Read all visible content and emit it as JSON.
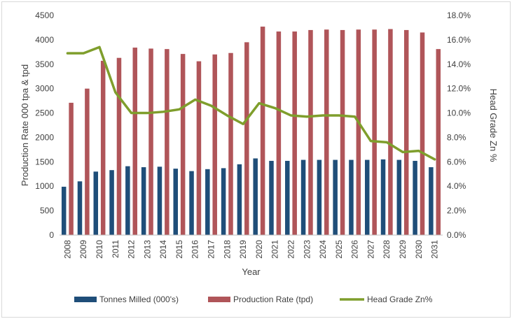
{
  "chart_data": {
    "type": "bar",
    "title": "",
    "xlabel": "Year",
    "ylabel": "Production Rate 000 tpa & tpd",
    "y2label": "Head Grade Zn %",
    "ylim": [
      0,
      4500
    ],
    "y2lim": [
      0,
      0.18
    ],
    "yticks": [
      "0",
      "500",
      "1000",
      "1500",
      "2000",
      "2500",
      "3000",
      "3500",
      "4000",
      "4500"
    ],
    "y2ticks": [
      "0.0%",
      "2.0%",
      "4.0%",
      "6.0%",
      "8.0%",
      "10.0%",
      "12.0%",
      "14.0%",
      "16.0%",
      "18.0%"
    ],
    "categories": [
      "2008",
      "2009",
      "2010",
      "2011",
      "2012",
      "2013",
      "2014",
      "2015",
      "2016",
      "2017",
      "2018",
      "2019",
      "2020",
      "2021",
      "2022",
      "2023",
      "2024",
      "2025",
      "2026",
      "2027",
      "2028",
      "2029",
      "2030",
      "2031"
    ],
    "series": [
      {
        "name": "Tonnes Milled (000's)",
        "type": "bar",
        "axis": "left",
        "color": "#1f4e79",
        "values": [
          990,
          1100,
          1300,
          1330,
          1410,
          1390,
          1400,
          1360,
          1310,
          1350,
          1370,
          1450,
          1570,
          1520,
          1520,
          1540,
          1540,
          1540,
          1540,
          1540,
          1550,
          1540,
          1520,
          1390
        ]
      },
      {
        "name": "Production Rate (tpd)",
        "type": "bar",
        "axis": "left",
        "color": "#b05559",
        "values": [
          2710,
          3000,
          3570,
          3630,
          3840,
          3820,
          3810,
          3710,
          3560,
          3700,
          3730,
          3950,
          4270,
          4170,
          4170,
          4200,
          4210,
          4200,
          4210,
          4210,
          4220,
          4200,
          4150,
          3810
        ]
      },
      {
        "name": "Head Grade Zn%",
        "type": "line",
        "axis": "right",
        "color": "#7f9e2c",
        "values": [
          0.149,
          0.149,
          0.154,
          0.117,
          0.1,
          0.1,
          0.101,
          0.103,
          0.111,
          0.106,
          0.098,
          0.091,
          0.108,
          0.104,
          0.098,
          0.097,
          0.098,
          0.098,
          0.097,
          0.077,
          0.076,
          0.068,
          0.069,
          0.062
        ]
      }
    ],
    "legend": "bottom",
    "grid": false
  }
}
